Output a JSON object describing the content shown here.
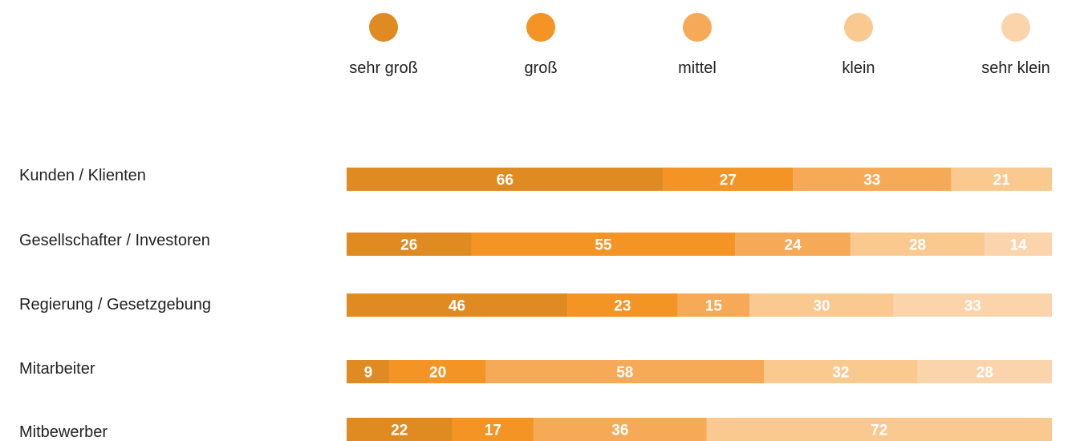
{
  "chart_data": {
    "type": "bar",
    "orientation": "horizontal",
    "stacked": true,
    "legend_position": "top",
    "grid": false,
    "categories": [
      "Kunden / Klienten",
      "Gesellschafter  / Investoren",
      "Regierung / Gesetzgebung",
      "Mitarbeiter",
      "Mitbewerber"
    ],
    "series": [
      {
        "name": "sehr groß",
        "color": "#E08A22",
        "values": [
          66,
          26,
          46,
          9,
          22
        ]
      },
      {
        "name": "groß",
        "color": "#F39424",
        "values": [
          27,
          55,
          23,
          20,
          17
        ]
      },
      {
        "name": "mittel",
        "color": "#F6A957",
        "values": [
          33,
          24,
          15,
          58,
          36
        ]
      },
      {
        "name": "klein",
        "color": "#F9C990",
        "values": [
          21,
          28,
          30,
          32,
          72
        ]
      },
      {
        "name": "sehr klein",
        "color": "#FBD4AC",
        "values": [
          null,
          14,
          33,
          28,
          null
        ]
      }
    ]
  }
}
